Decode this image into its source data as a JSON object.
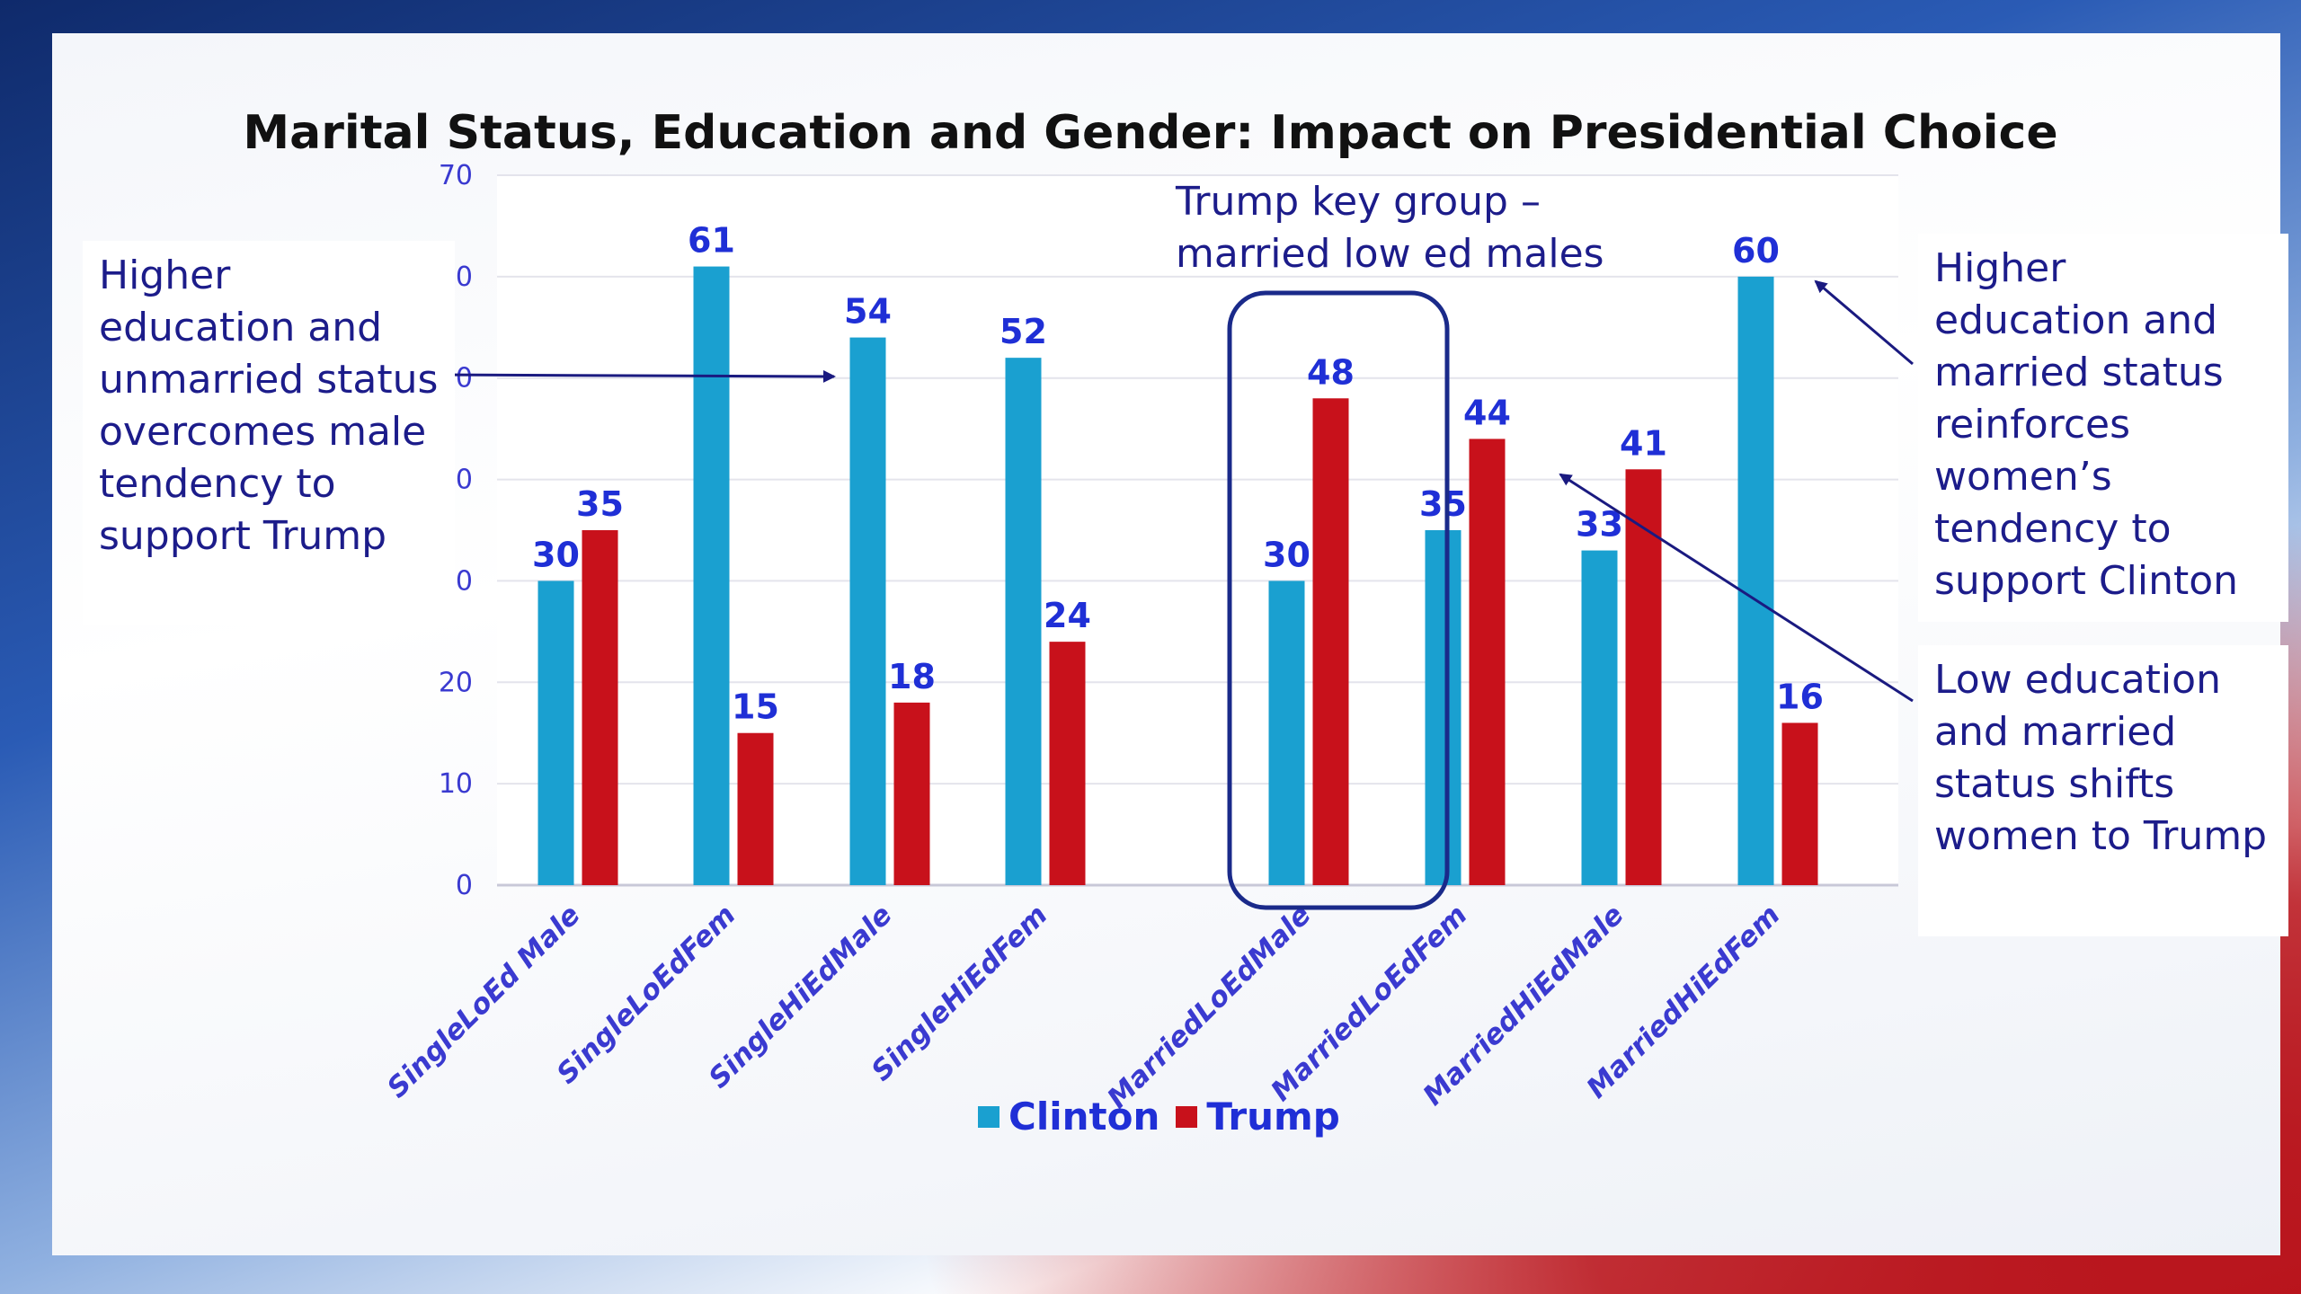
{
  "chart_data": {
    "type": "bar",
    "title": "Marital Status, Education and Gender: Impact on Presidential Choice",
    "categories": [
      "SingleLoEd Male",
      "SingleLoEdFem",
      "SingleHiEdMale",
      "SingleHiEdFem",
      "MarriedLoEdMale",
      "MarriedLoEdFem",
      "MarriedHiEdMale",
      "MarriedHiEdFem"
    ],
    "series": [
      {
        "name": "Clinton",
        "color": "#1aa0d0",
        "values": [
          30,
          61,
          54,
          52,
          30,
          35,
          33,
          60
        ]
      },
      {
        "name": "Trump",
        "color": "#c8111b",
        "values": [
          35,
          15,
          18,
          24,
          48,
          44,
          41,
          16
        ]
      }
    ],
    "ylim": [
      0,
      70
    ],
    "yticks": [
      0,
      10,
      20,
      30,
      40,
      50,
      60,
      70
    ],
    "grid": true,
    "legend": "bottom",
    "data_label_color": "#1f2fd6",
    "axis_text_color": "#3a3ad0"
  },
  "callouts": {
    "left": "Higher education and unmarried status overcomes male tendency to support Trump",
    "key_group": "Trump key group – married low ed males",
    "right_top": "Higher education and married status reinforces women’s tendency to support Clinton",
    "right_bottom": "Low education and married status shifts women to Trump"
  },
  "legend": {
    "clinton": "Clinton",
    "trump": "Trump"
  }
}
